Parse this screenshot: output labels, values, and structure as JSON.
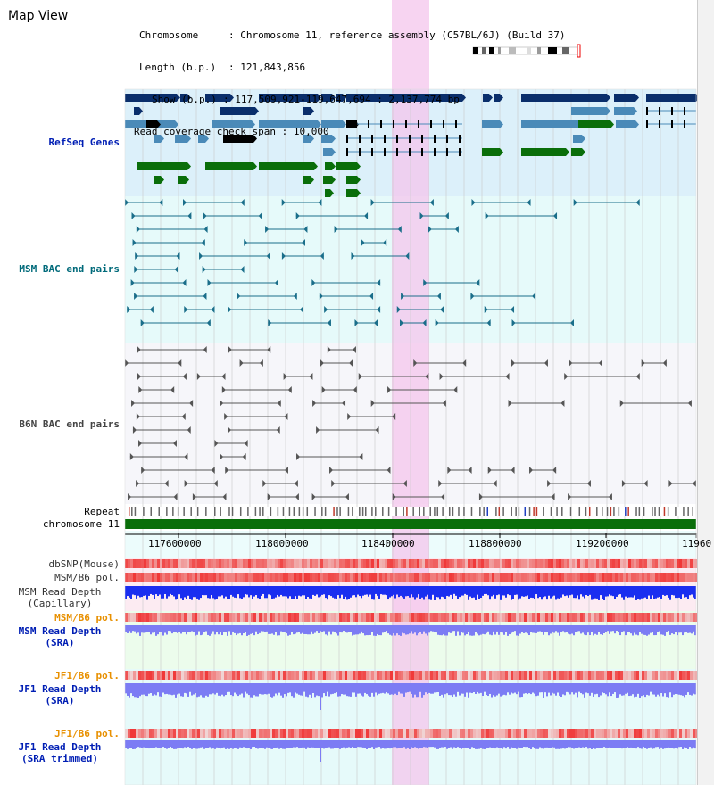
{
  "title": "Map View",
  "info": {
    "chromosome_label": "Chromosome",
    "chromosome_value": "Chromosome 11, reference assembly (C57BL/6J) (Build 37)",
    "length_label": "Length (b.p.)",
    "length_value": "121,843,856",
    "show_label": "Show (b.p.)",
    "show_value": "117,509,921-119,647,694 : 2,137,774 bp",
    "span_label": "Read coverage check span",
    "span_value": "10,000"
  },
  "tracks": {
    "refseq": "RefSeq Genes",
    "msm_bac": "MSM BAC end pairs",
    "b6n_bac": "B6N BAC end pairs",
    "repeat": "Repeat",
    "chromosome": "chromosome 11",
    "dbsnp": "dbSNP(Mouse)",
    "msm_b6_pol": "MSM/B6 pol.",
    "msm_depth_cap_1": "MSM Read Depth",
    "msm_depth_cap_2": "(Capillary)",
    "msm_b6_pol2": "MSM/B6 pol.",
    "msm_depth_sra_1": "MSM Read Depth",
    "msm_depth_sra_2": "(SRA)",
    "jf1_b6_pol": "JF1/B6 pol.",
    "jf1_depth_sra_1": "JF1 Read Depth",
    "jf1_depth_sra_2": "(SRA)",
    "jf1_b6_pol2": "JF1/B6 pol.",
    "jf1_depth_trim_1": "JF1 Read Depth",
    "jf1_depth_trim_2": "(SRA trimmed)"
  },
  "axis": {
    "ticks": [
      "117600000",
      "118000000",
      "118400000",
      "118800000",
      "119200000",
      "11960"
    ]
  },
  "colors": {
    "refseq_dark": "#0a2e6b",
    "refseq_mid": "#4a8ab8",
    "refseq_green": "#0a6e0a",
    "msm_pair": "#1a6e8a",
    "b6n_pair": "#555555",
    "highlight": "#f4c6ec",
    "chromosome_bar": "#0a6e0a",
    "depth_blue": "#1a2ef0",
    "depth_light": "#7c7cf4",
    "pol_red": "#f05050"
  }
}
